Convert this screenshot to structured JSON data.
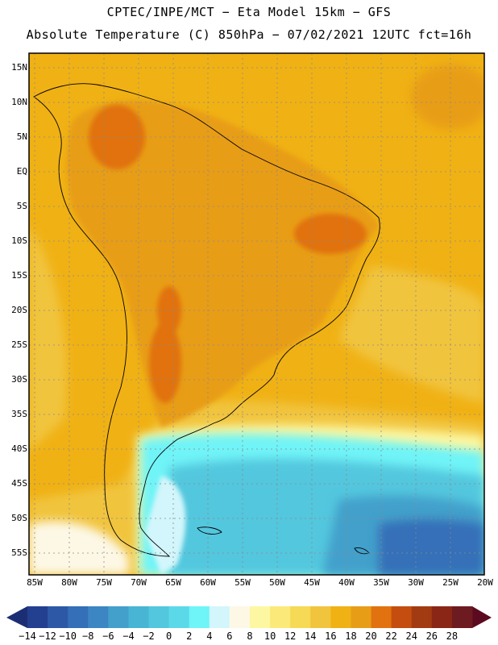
{
  "header": {
    "line1": "CPTEC/INPE/MCT −  Eta Model 15km − GFS",
    "line2": "Absolute Temperature (C) 850hPa − 07/02/2021 12UTC fct=16h"
  },
  "map": {
    "lat_labels": [
      "15N",
      "10N",
      "5N",
      "EQ",
      "5S",
      "10S",
      "15S",
      "20S",
      "25S",
      "30S",
      "35S",
      "40S",
      "45S",
      "50S",
      "55S"
    ],
    "lon_labels": [
      "85W",
      "80W",
      "75W",
      "70W",
      "65W",
      "60W",
      "55W",
      "50W",
      "45W",
      "40W",
      "35W",
      "30W",
      "25W",
      "20W"
    ]
  },
  "colorbar": {
    "labels": [
      "−14",
      "−12",
      "−10",
      "−8",
      "−6",
      "−4",
      "−2",
      "0",
      "2",
      "4",
      "6",
      "8",
      "10",
      "12",
      "14",
      "16",
      "18",
      "20",
      "22",
      "24",
      "26",
      "28"
    ],
    "colors": [
      "#233f8f",
      "#2d58a6",
      "#346fb8",
      "#3c86c4",
      "#43a0cb",
      "#49b5d4",
      "#52c7de",
      "#5cd9e9",
      "#6ff4f7",
      "#d2f6fb",
      "#fdf8e6",
      "#fdf7a2",
      "#fbe97a",
      "#f6d955",
      "#f1c43d",
      "#f0b114",
      "#e89d17",
      "#e1720f",
      "#c54d10",
      "#a33b12",
      "#8a2616",
      "#6d1a21"
    ],
    "end_low_color": "#1c2e73",
    "end_high_color": "#5c0a20"
  }
}
